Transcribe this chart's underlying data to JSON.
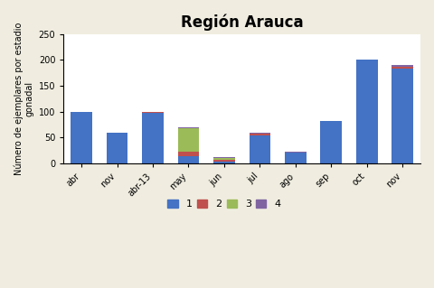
{
  "title": "Región Arauca",
  "ylabel": "Número de ejemplares por estadio\ngonadal",
  "categories": [
    "abr",
    "nov",
    "abr-13",
    "may",
    "jun",
    "jul",
    "ago",
    "sep",
    "oct",
    "nov"
  ],
  "series": {
    "1": [
      100,
      60,
      97,
      13,
      4,
      54,
      20,
      82,
      200,
      183
    ],
    "2": [
      0,
      0,
      2,
      10,
      3,
      3,
      1,
      0,
      0,
      3
    ],
    "3": [
      0,
      0,
      0,
      45,
      3,
      0,
      0,
      0,
      0,
      0
    ],
    "4": [
      0,
      0,
      1,
      2,
      2,
      2,
      1,
      0,
      0,
      4
    ]
  },
  "colors": {
    "1": "#4472C4",
    "2": "#C0504D",
    "3": "#9BBB59",
    "4": "#8064A2"
  },
  "legend_labels": [
    "1",
    "2",
    "3",
    "4"
  ],
  "ylim": [
    0,
    250
  ],
  "yticks": [
    0,
    50,
    100,
    150,
    200,
    250
  ],
  "figsize": [
    4.8,
    3.19
  ],
  "dpi": 100,
  "bg_color": "#F0EDE0",
  "plot_bg": "#FFFFFF",
  "title_fontsize": 12,
  "axis_label_fontsize": 7,
  "tick_fontsize": 7,
  "legend_fontsize": 8
}
